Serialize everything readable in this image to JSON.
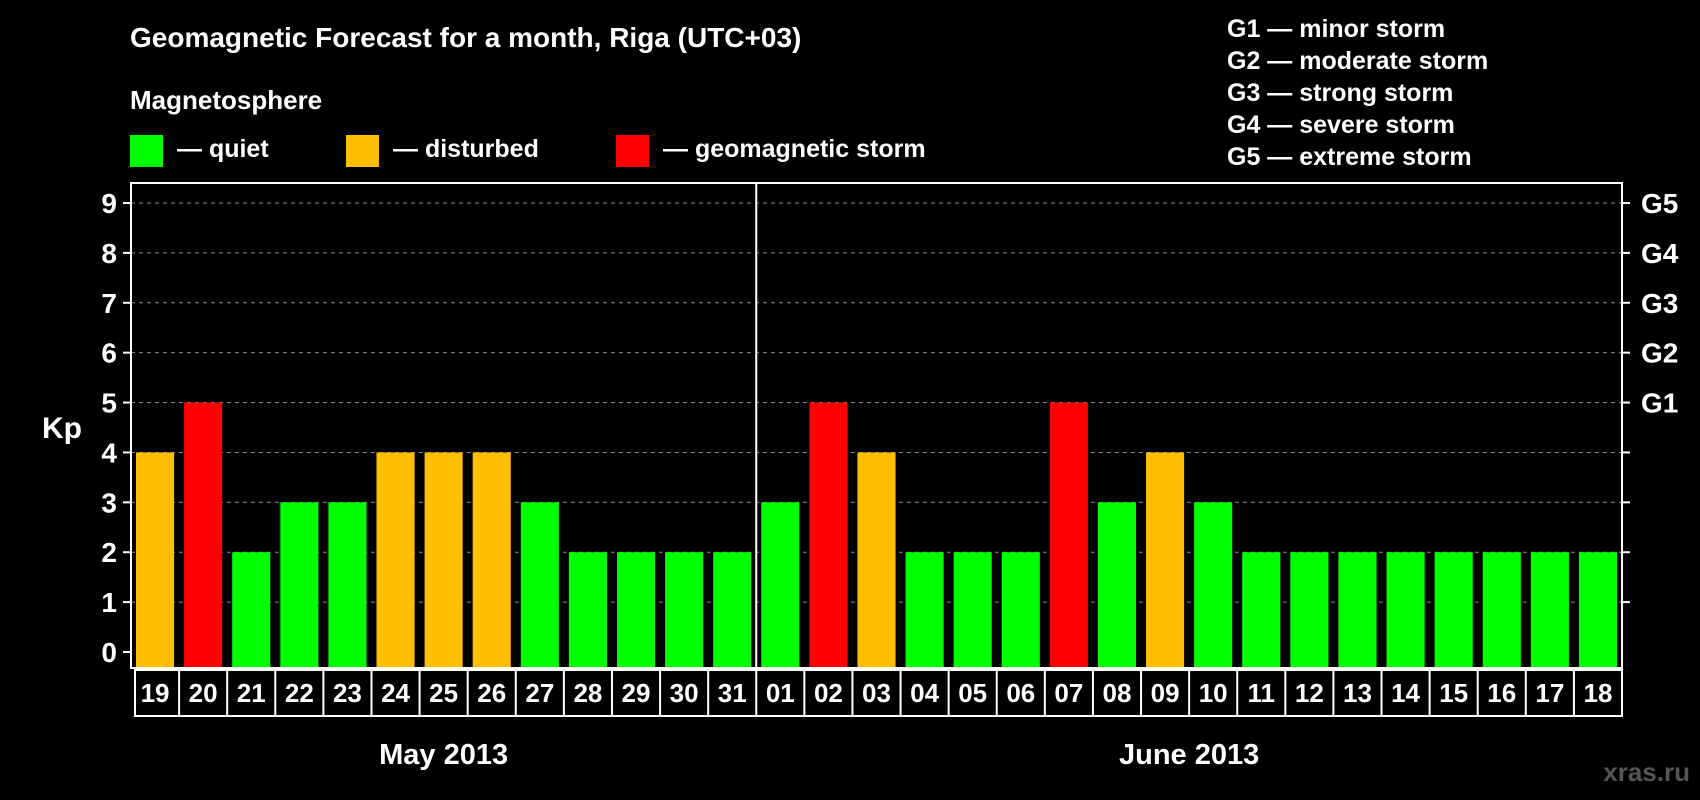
{
  "title": "Geomagnetic Forecast for a month, Riga (UTC+03)",
  "legend": {
    "heading": "Magnetosphere",
    "items": [
      {
        "key": "quiet",
        "label": "— quiet",
        "color": "#00ff00"
      },
      {
        "key": "disturbed",
        "label": "— disturbed",
        "color": "#ffbf00"
      },
      {
        "key": "storm",
        "label": "— geomagnetic storm",
        "color": "#ff0000"
      }
    ]
  },
  "storm_scale": [
    "G1 — minor storm",
    "G2 — moderate storm",
    "G3 — strong storm",
    "G4 — severe storm",
    "G5 — extreme storm"
  ],
  "watermark": "xras.ru",
  "chart_data": {
    "type": "bar",
    "ylabel": "Kp",
    "ylim": [
      0,
      9
    ],
    "yticks": [
      0,
      1,
      2,
      3,
      4,
      5,
      6,
      7,
      8,
      9
    ],
    "right_axis_labels": [
      {
        "kp": 5,
        "label": "G1"
      },
      {
        "kp": 6,
        "label": "G2"
      },
      {
        "kp": 7,
        "label": "G3"
      },
      {
        "kp": 8,
        "label": "G4"
      },
      {
        "kp": 9,
        "label": "G5"
      }
    ],
    "grid": "horizontal dashed",
    "months": [
      {
        "label": "May 2013",
        "days": 13
      },
      {
        "label": "June 2013",
        "days": 18
      }
    ],
    "categories": [
      "19",
      "20",
      "21",
      "22",
      "23",
      "24",
      "25",
      "26",
      "27",
      "28",
      "29",
      "30",
      "31",
      "01",
      "02",
      "03",
      "04",
      "05",
      "06",
      "07",
      "08",
      "09",
      "10",
      "11",
      "12",
      "13",
      "14",
      "15",
      "16",
      "17",
      "18"
    ],
    "values": [
      4,
      5,
      2,
      3,
      3,
      4,
      4,
      4,
      3,
      2,
      2,
      2,
      2,
      3,
      5,
      4,
      2,
      2,
      2,
      5,
      3,
      4,
      3,
      2,
      2,
      2,
      2,
      2,
      2,
      2,
      2
    ],
    "status": [
      "disturbed",
      "storm",
      "quiet",
      "quiet",
      "quiet",
      "disturbed",
      "disturbed",
      "disturbed",
      "quiet",
      "quiet",
      "quiet",
      "quiet",
      "quiet",
      "quiet",
      "storm",
      "disturbed",
      "quiet",
      "quiet",
      "quiet",
      "storm",
      "quiet",
      "disturbed",
      "quiet",
      "quiet",
      "quiet",
      "quiet",
      "quiet",
      "quiet",
      "quiet",
      "quiet",
      "quiet"
    ]
  }
}
